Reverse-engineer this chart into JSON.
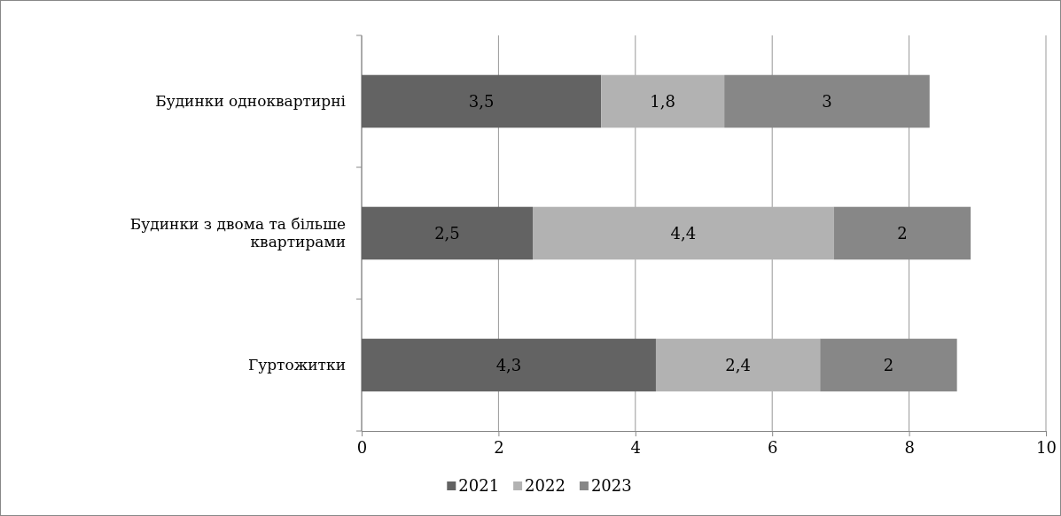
{
  "chart_data": {
    "type": "bar",
    "orientation": "horizontal",
    "stacked": true,
    "categories": [
      "Будинки одноквартирні",
      "Будинки з двома та більше квартирами",
      "Гуртожитки"
    ],
    "series": [
      {
        "name": "2021",
        "color": "#636363",
        "values": [
          3.5,
          2.5,
          4.3
        ],
        "value_labels": [
          "3,5",
          "2,5",
          "4,3"
        ]
      },
      {
        "name": "2022",
        "color": "#b2b2b2",
        "values": [
          1.8,
          4.4,
          2.4
        ],
        "value_labels": [
          "1,8",
          "4,4",
          "2,4"
        ]
      },
      {
        "name": "2023",
        "color": "#878787",
        "values": [
          3,
          2,
          2
        ],
        "value_labels": [
          "3",
          "2",
          "2"
        ]
      }
    ],
    "xlim": [
      0,
      10
    ],
    "xticks": [
      0,
      2,
      4,
      6,
      8,
      10
    ],
    "grid": "x",
    "legend": "bottom"
  }
}
